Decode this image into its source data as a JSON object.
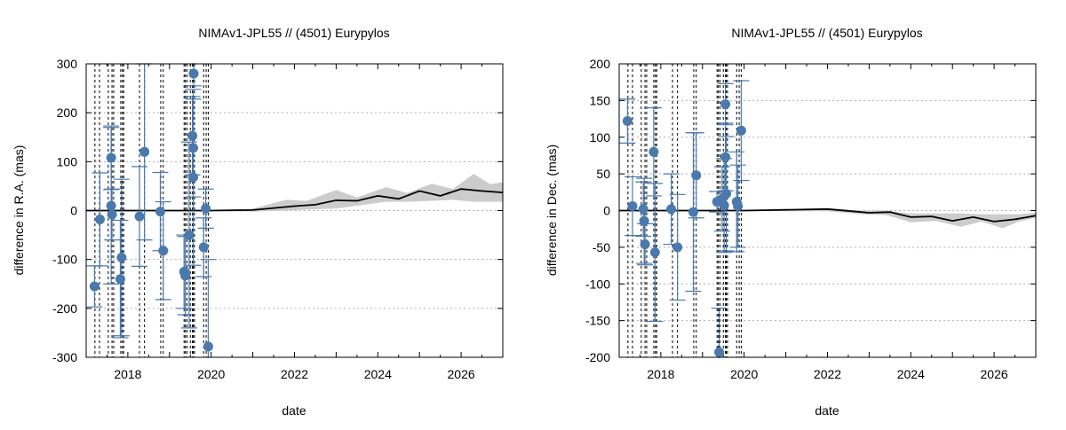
{
  "chart_data": [
    {
      "type": "scatter",
      "title": "NIMAv1-JPL55 // (4501) Eurypylos",
      "xlabel": "date",
      "ylabel": "difference in R.A. (mas)",
      "xlim": [
        2017.0,
        2027.0
      ],
      "ylim": [
        -300,
        300
      ],
      "xticks": [
        2018,
        2020,
        2022,
        2024,
        2026
      ],
      "yticks": [
        -300,
        -200,
        -100,
        0,
        100,
        200,
        300
      ],
      "grid": "horizontal dotted",
      "observation_dates": [
        2017.21,
        2017.32,
        2017.53,
        2017.62,
        2017.66,
        2017.83,
        2017.87,
        2017.9,
        2018.28,
        2018.4,
        2018.79,
        2018.85,
        2019.35,
        2019.38,
        2019.42,
        2019.5,
        2019.55,
        2019.57,
        2019.6,
        2019.82,
        2019.88,
        2019.93
      ],
      "points": [
        {
          "x": 2017.2,
          "y": -155,
          "err": 42
        },
        {
          "x": 2017.33,
          "y": -18,
          "err": 95
        },
        {
          "x": 2017.6,
          "y": 108,
          "err": 65
        },
        {
          "x": 2017.6,
          "y": 10,
          "err": 160
        },
        {
          "x": 2017.62,
          "y": -8,
          "err": 52
        },
        {
          "x": 2017.82,
          "y": -140,
          "err": 120
        },
        {
          "x": 2017.85,
          "y": -96,
          "err": 160
        },
        {
          "x": 2018.28,
          "y": -12,
          "err": 102
        },
        {
          "x": 2018.4,
          "y": 120,
          "err": 180
        },
        {
          "x": 2018.78,
          "y": -2,
          "err": 80
        },
        {
          "x": 2018.85,
          "y": -82,
          "err": 100
        },
        {
          "x": 2019.35,
          "y": -125,
          "err": 75
        },
        {
          "x": 2019.38,
          "y": -133,
          "err": 80
        },
        {
          "x": 2019.47,
          "y": -50,
          "err": 190
        },
        {
          "x": 2019.55,
          "y": 153,
          "err": 80
        },
        {
          "x": 2019.57,
          "y": 128,
          "err": 100
        },
        {
          "x": 2019.57,
          "y": 68,
          "err": 180
        },
        {
          "x": 2019.58,
          "y": 280,
          "err": 25
        },
        {
          "x": 2019.82,
          "y": -75,
          "err": 60
        },
        {
          "x": 2019.87,
          "y": 4,
          "err": 40
        },
        {
          "x": 2019.93,
          "y": -278,
          "err": 178
        }
      ],
      "model_line": [
        [
          2017,
          0
        ],
        [
          2020,
          0
        ],
        [
          2021,
          1
        ],
        [
          2022,
          9
        ],
        [
          2022.5,
          12
        ],
        [
          2023,
          21
        ],
        [
          2023.5,
          20
        ],
        [
          2024,
          30
        ],
        [
          2024.5,
          24
        ],
        [
          2025,
          40
        ],
        [
          2025.5,
          30
        ],
        [
          2026,
          44
        ],
        [
          2026.5,
          40
        ],
        [
          2027,
          37
        ]
      ],
      "uncertainty_band": [
        [
          2017,
          0,
          0
        ],
        [
          2020,
          0,
          0
        ],
        [
          2021,
          4,
          -2
        ],
        [
          2021.8,
          22,
          0
        ],
        [
          2022.3,
          20,
          2
        ],
        [
          2023,
          42,
          4
        ],
        [
          2023.5,
          27,
          10
        ],
        [
          2024.2,
          48,
          18
        ],
        [
          2024.7,
          36,
          18
        ],
        [
          2025.3,
          55,
          20
        ],
        [
          2025.8,
          44,
          22
        ],
        [
          2026.3,
          75,
          18
        ],
        [
          2026.7,
          54,
          18
        ],
        [
          2027,
          58,
          18
        ]
      ],
      "colors": {
        "points": "#4a79ad",
        "model": "#000000",
        "band": "#cccccc"
      }
    },
    {
      "type": "scatter",
      "title": "NIMAv1-JPL55 // (4501) Eurypylos",
      "xlabel": "date",
      "ylabel": "difference in Dec. (mas)",
      "xlim": [
        2017.0,
        2027.0
      ],
      "ylim": [
        -200,
        200
      ],
      "xticks": [
        2018,
        2020,
        2022,
        2024,
        2026
      ],
      "yticks": [
        -200,
        -150,
        -100,
        -50,
        0,
        50,
        100,
        150,
        200
      ],
      "grid": "horizontal dotted",
      "observation_dates": [
        2017.21,
        2017.32,
        2017.53,
        2017.62,
        2017.66,
        2017.83,
        2017.87,
        2017.9,
        2018.28,
        2018.4,
        2018.79,
        2018.85,
        2019.35,
        2019.38,
        2019.42,
        2019.5,
        2019.55,
        2019.57,
        2019.6,
        2019.82,
        2019.88,
        2019.93
      ],
      "points": [
        {
          "x": 2017.2,
          "y": 122,
          "err": 30
        },
        {
          "x": 2017.32,
          "y": 6,
          "err": 40
        },
        {
          "x": 2017.58,
          "y": 2,
          "err": 37
        },
        {
          "x": 2017.6,
          "y": -14,
          "err": 58
        },
        {
          "x": 2017.62,
          "y": -46,
          "err": 28
        },
        {
          "x": 2017.83,
          "y": 80,
          "err": 60
        },
        {
          "x": 2017.86,
          "y": -57,
          "err": 94
        },
        {
          "x": 2018.25,
          "y": 2,
          "err": 48
        },
        {
          "x": 2018.4,
          "y": -50,
          "err": 72
        },
        {
          "x": 2018.78,
          "y": -2,
          "err": 108
        },
        {
          "x": 2018.85,
          "y": 48,
          "err": 58
        },
        {
          "x": 2019.35,
          "y": 12,
          "err": 14
        },
        {
          "x": 2019.4,
          "y": -193,
          "err": 60
        },
        {
          "x": 2019.47,
          "y": 16,
          "err": 44
        },
        {
          "x": 2019.52,
          "y": 7,
          "err": 64
        },
        {
          "x": 2019.55,
          "y": 145,
          "err": 28
        },
        {
          "x": 2019.55,
          "y": 73,
          "err": 46
        },
        {
          "x": 2019.57,
          "y": 23,
          "err": 78
        },
        {
          "x": 2019.82,
          "y": 12,
          "err": 68
        },
        {
          "x": 2019.85,
          "y": 6,
          "err": 56
        },
        {
          "x": 2019.93,
          "y": 109,
          "err": 68
        }
      ],
      "model_line": [
        [
          2017,
          0
        ],
        [
          2020,
          0
        ],
        [
          2021,
          1
        ],
        [
          2022,
          2
        ],
        [
          2022.6,
          -1
        ],
        [
          2023,
          -3
        ],
        [
          2023.5,
          -2
        ],
        [
          2024,
          -9
        ],
        [
          2024.5,
          -8
        ],
        [
          2025,
          -14
        ],
        [
          2025.5,
          -9
        ],
        [
          2026,
          -15
        ],
        [
          2026.5,
          -12
        ],
        [
          2027,
          -7
        ]
      ],
      "uncertainty_band": [
        [
          2017,
          0,
          0
        ],
        [
          2020,
          0,
          0
        ],
        [
          2021,
          2,
          -1
        ],
        [
          2022,
          3,
          -1
        ],
        [
          2022.8,
          0,
          -5
        ],
        [
          2023.4,
          0,
          -6
        ],
        [
          2024,
          -4,
          -16
        ],
        [
          2024.6,
          -4,
          -14
        ],
        [
          2025.2,
          -4,
          -22
        ],
        [
          2025.7,
          -5,
          -15
        ],
        [
          2026.2,
          -5,
          -24
        ],
        [
          2026.6,
          -5,
          -15
        ],
        [
          2027,
          -3,
          -10
        ]
      ],
      "colors": {
        "points": "#4a79ad",
        "model": "#000000",
        "band": "#cccccc"
      }
    }
  ]
}
